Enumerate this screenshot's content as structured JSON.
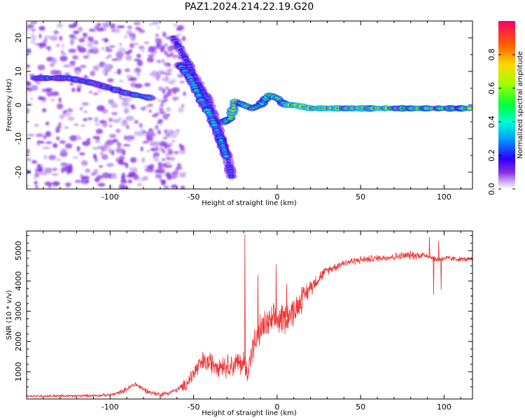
{
  "title": "PAZ1.2024.214.22.19.G20",
  "chart_data": [
    {
      "type": "heatmap",
      "xlabel": "Height of straight line (km)",
      "ylabel": "Frequency (Hz)",
      "xlim": [
        -150,
        117
      ],
      "ylim": [
        -25,
        25
      ],
      "xticks": [
        -100,
        -50,
        0,
        50,
        100
      ],
      "yticks": [
        -20,
        -10,
        0,
        10,
        20
      ],
      "colorbar": {
        "label": "Normalized spectral amplitude",
        "range": [
          0,
          1
        ],
        "ticks": [
          0.0,
          0.2,
          0.4,
          0.6,
          0.8
        ],
        "tick_labels": [
          "0.0",
          "0.2",
          "0.4",
          "0.6",
          "0.8"
        ],
        "colormap": "gist_rainbow_r"
      },
      "ridges": [
        {
          "points": [
            [
              -145,
              8
            ],
            [
              -125,
              8
            ],
            [
              -110,
              6.5
            ],
            [
              -100,
              5
            ],
            [
              -90,
              3.5
            ],
            [
              -80,
              2.5
            ],
            [
              -75,
              2
            ]
          ],
          "level": 0.35
        },
        {
          "points": [
            [
              -62,
              20
            ],
            [
              -55,
              14
            ],
            [
              -48,
              7
            ],
            [
              -42,
              2
            ],
            [
              -36,
              -6
            ],
            [
              -30,
              -15
            ],
            [
              -27,
              -22
            ]
          ],
          "level": 0.25
        },
        {
          "points": [
            [
              -58,
              12
            ],
            [
              -52,
              8
            ],
            [
              -46,
              2
            ],
            [
              -40,
              -3
            ],
            [
              -34,
              -10
            ],
            [
              -30,
              -16
            ]
          ],
          "level": 0.4
        },
        {
          "points": [
            [
              -32,
              -5
            ],
            [
              -28,
              -4
            ],
            [
              -25,
              1
            ],
            [
              -20,
              0
            ],
            [
              -15,
              -1
            ],
            [
              -10,
              0
            ],
            [
              -5,
              3
            ],
            [
              0,
              2
            ],
            [
              5,
              0
            ],
            [
              10,
              0
            ],
            [
              20,
              -1
            ],
            [
              30,
              -1
            ],
            [
              40,
              -1
            ],
            [
              60,
              -1
            ],
            [
              80,
              -1
            ],
            [
              95,
              -1
            ],
            [
              100,
              -1
            ],
            [
              117,
              -1
            ]
          ],
          "level": 0.65
        }
      ]
    },
    {
      "type": "line",
      "xlabel": "Height of straight line (km)",
      "ylabel": "SNR (10 * v/v)",
      "xlim": [
        -150,
        117
      ],
      "ylim": [
        100,
        5650
      ],
      "xticks": [
        -100,
        -50,
        0,
        50,
        100
      ],
      "yticks": [
        1000,
        2000,
        3000,
        4000,
        5000
      ],
      "series": [
        {
          "color": "#ee3333",
          "envelope": [
            [
              -150,
              200
            ],
            [
              -120,
              200
            ],
            [
              -100,
              230
            ],
            [
              -95,
              300
            ],
            [
              -90,
              420
            ],
            [
              -85,
              600
            ],
            [
              -80,
              420
            ],
            [
              -75,
              300
            ],
            [
              -70,
              250
            ],
            [
              -65,
              300
            ],
            [
              -60,
              400
            ],
            [
              -55,
              550
            ],
            [
              -50,
              950
            ],
            [
              -45,
              1300
            ],
            [
              -40,
              1300
            ],
            [
              -35,
              1250
            ],
            [
              -30,
              1200
            ],
            [
              -25,
              1250
            ],
            [
              -20,
              1300
            ],
            [
              -18,
              1000
            ],
            [
              -15,
              1700
            ],
            [
              -10,
              2400
            ],
            [
              -5,
              2600
            ],
            [
              0,
              2700
            ],
            [
              5,
              2800
            ],
            [
              10,
              3000
            ],
            [
              15,
              3400
            ],
            [
              20,
              3800
            ],
            [
              25,
              4100
            ],
            [
              30,
              4350
            ],
            [
              40,
              4600
            ],
            [
              50,
              4700
            ],
            [
              60,
              4750
            ],
            [
              70,
              4800
            ],
            [
              80,
              4850
            ],
            [
              90,
              4850
            ],
            [
              95,
              4700
            ],
            [
              100,
              4750
            ],
            [
              117,
              4700
            ]
          ],
          "noise_scale": [
            [
              -150,
              40
            ],
            [
              -100,
              50
            ],
            [
              -90,
              90
            ],
            [
              -60,
              80
            ],
            [
              -50,
              350
            ],
            [
              -30,
              400
            ],
            [
              -20,
              450
            ],
            [
              -15,
              500
            ],
            [
              0,
              550
            ],
            [
              10,
              500
            ],
            [
              20,
              300
            ],
            [
              30,
              150
            ],
            [
              60,
              120
            ],
            [
              80,
              150
            ],
            [
              100,
              100
            ],
            [
              117,
              80
            ]
          ],
          "spikes": [
            [
              -19.5,
              5550
            ],
            [
              -11.7,
              4200
            ],
            [
              -8.3,
              2800
            ],
            [
              -0.8,
              4550
            ],
            [
              5.5,
              3900
            ],
            [
              14.5,
              3800
            ],
            [
              91,
              5450
            ],
            [
              93.5,
              3550
            ],
            [
              96.5,
              5320
            ],
            [
              98,
              3700
            ]
          ]
        }
      ]
    }
  ]
}
